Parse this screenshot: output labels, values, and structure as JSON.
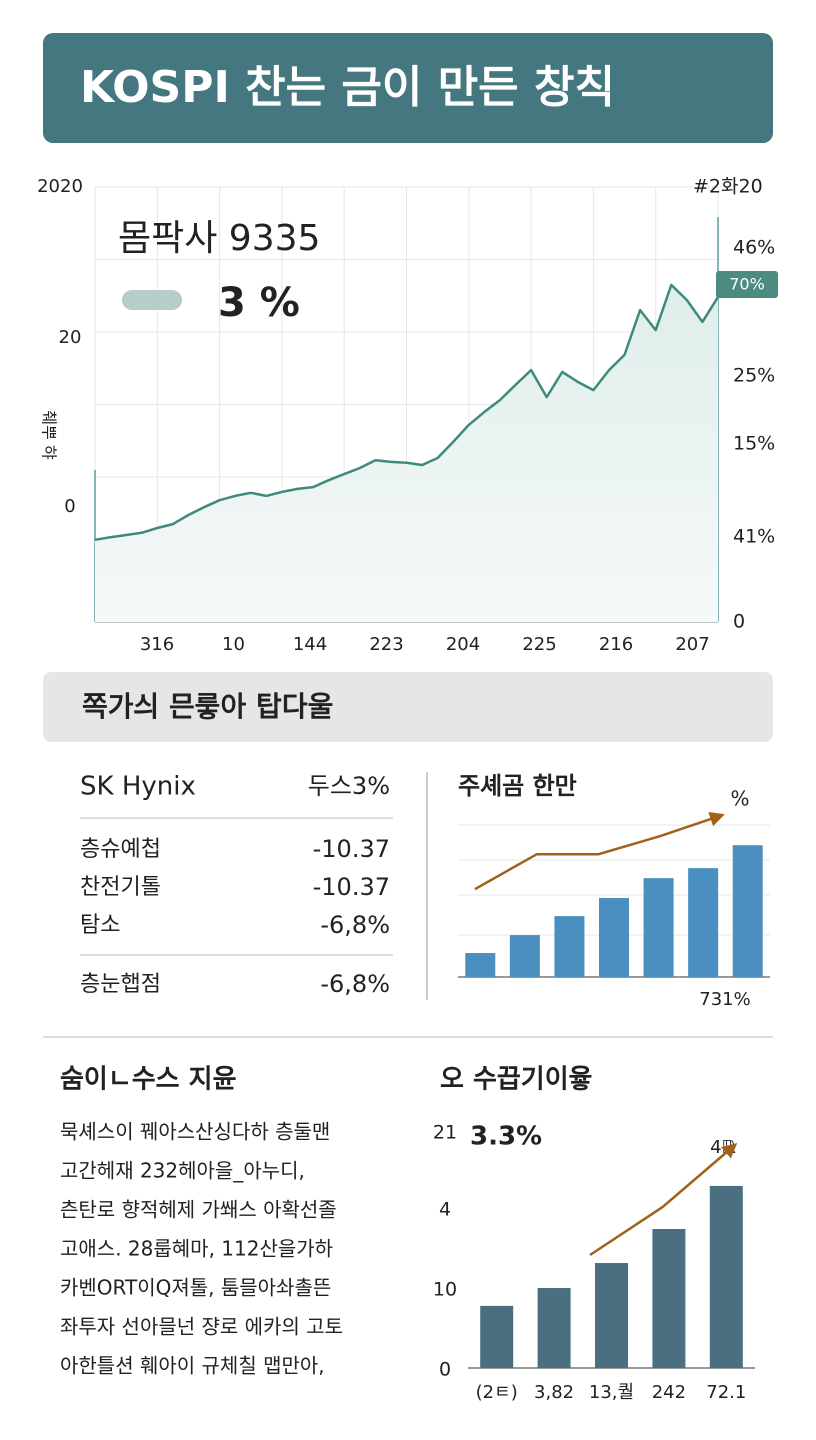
{
  "header": {
    "title": "KOSPI 찬는 금이 만든 창칙"
  },
  "table": {
    "section_title": "쪽가싀 믄뤃아 탑다울",
    "head": [
      "SK Hynix",
      "두스3%"
    ],
    "rows": [
      [
        "층슈예첩",
        "-10.37"
      ],
      [
        "찬전기톨",
        "-10.37"
      ],
      [
        "탐소",
        "-6,8%"
      ]
    ],
    "total": [
      "층눈햅점",
      "-6,8%"
    ]
  },
  "article": {
    "title": "숨이ㄴ수스 지윤",
    "lines": [
      "묵셰스이 꿰아스산싱다하 층둘맨",
      "고간헤재 232헤아을_아누디,",
      "츤탄로 향적헤제 가쐐스 아확선졸",
      "고애스. 28룹혜마, 112산을가하",
      "카벤ORT이Q져톨, 툼믈아솨촐뜬",
      "좌투자 선아믈넌 쟝로 에카의 고토",
      "아한틀션 훼아이 규체칠 맵만아,"
    ]
  },
  "chart_data": [
    {
      "type": "line",
      "overlay_label": "몸팍사 9335",
      "overlay_value": "3 %",
      "badge": "70%",
      "y_axis_title": "췌뿌 햐",
      "left_axis_labels": [
        "2020",
        "20",
        "0"
      ],
      "right_axis_labels": [
        "#2화20",
        "46%",
        "25%",
        "15%",
        "41%",
        "0"
      ],
      "x_labels": [
        "316",
        "10",
        "144",
        "223",
        "204",
        "225",
        "216",
        "207"
      ],
      "values": [
        18.9,
        19.5,
        20.0,
        20.5,
        21.6,
        22.5,
        24.6,
        26.4,
        28.0,
        29.0,
        29.7,
        29.0,
        29.9,
        30.6,
        31.0,
        32.6,
        34.0,
        35.4,
        37.2,
        36.8,
        36.6,
        36.1,
        37.7,
        41.4,
        45.3,
        48.3,
        51.0,
        54.5,
        57.9,
        51.7,
        57.5,
        55.2,
        53.3,
        57.9,
        61.4,
        71.7,
        67.1,
        77.5,
        74.0,
        69.0,
        74.7
      ],
      "color": "#3f8a7e",
      "ylim": [
        0,
        100
      ]
    },
    {
      "type": "bar",
      "title": "주셰곰 한만",
      "top_label": "%",
      "bottom_label": "731%",
      "values": [
        15.8,
        27.6,
        40.1,
        52.0,
        65.1,
        71.7,
        86.8
      ],
      "trend": [
        57.9,
        80.9,
        80.9,
        92.8,
        106.6
      ],
      "color": "#4a8fc0",
      "trend_color": "#a0621a",
      "ylim": [
        0,
        110
      ]
    },
    {
      "type": "bar",
      "title": "오 수끕기이윻",
      "headline": "3.3%",
      "trend_label": "4ℝ",
      "y_labels": [
        "21",
        "4",
        "10",
        "0"
      ],
      "x_labels": [
        "(2ㅌ)",
        "3,82",
        "13,퀄",
        "242",
        "72.1"
      ],
      "values": [
        26.1,
        33.6,
        44.1,
        58.4,
        76.5
      ],
      "trend": [
        47.5,
        67.6,
        93.7
      ],
      "color": "#4a6f80",
      "trend_color": "#a0621a",
      "ylim": [
        0,
        100
      ]
    }
  ]
}
